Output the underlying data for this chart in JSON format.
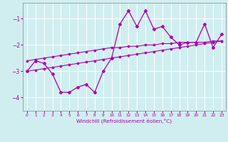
{
  "x": [
    0,
    1,
    2,
    3,
    4,
    5,
    6,
    7,
    8,
    9,
    10,
    11,
    12,
    13,
    14,
    15,
    16,
    17,
    18,
    19,
    20,
    21,
    22,
    23
  ],
  "y_main": [
    -3.0,
    -2.6,
    -2.7,
    -3.1,
    -3.8,
    -3.8,
    -3.6,
    -3.5,
    -3.8,
    -3.0,
    -2.5,
    -1.2,
    -0.7,
    -1.3,
    -0.7,
    -1.4,
    -1.3,
    -1.7,
    -2.0,
    -1.9,
    -1.9,
    -1.2,
    -2.1,
    -1.6
  ],
  "y_upper": [
    -2.6,
    -2.55,
    -2.5,
    -2.45,
    -2.4,
    -2.35,
    -2.3,
    -2.25,
    -2.2,
    -2.15,
    -2.1,
    -2.1,
    -2.05,
    -2.05,
    -2.0,
    -2.0,
    -1.95,
    -1.95,
    -1.9,
    -1.9,
    -1.9,
    -1.9,
    -1.85,
    -1.85
  ],
  "y_lower": [
    -3.0,
    -2.95,
    -2.9,
    -2.85,
    -2.8,
    -2.75,
    -2.7,
    -2.65,
    -2.6,
    -2.55,
    -2.5,
    -2.45,
    -2.4,
    -2.35,
    -2.3,
    -2.25,
    -2.2,
    -2.15,
    -2.1,
    -2.05,
    -2.0,
    -1.95,
    -1.9,
    -1.85
  ],
  "line_color": "#aa00aa",
  "bg_color": "#d0eef0",
  "grid_color": "#ffffff",
  "xlabel": "Windchill (Refroidissement éolien,°C)",
  "ylim": [
    -4.5,
    -0.4
  ],
  "xlim": [
    -0.5,
    23.5
  ],
  "yticks": [
    -4,
    -3,
    -2,
    -1
  ],
  "xticks": [
    0,
    1,
    2,
    3,
    4,
    5,
    6,
    7,
    8,
    9,
    10,
    11,
    12,
    13,
    14,
    15,
    16,
    17,
    18,
    19,
    20,
    21,
    22,
    23
  ]
}
